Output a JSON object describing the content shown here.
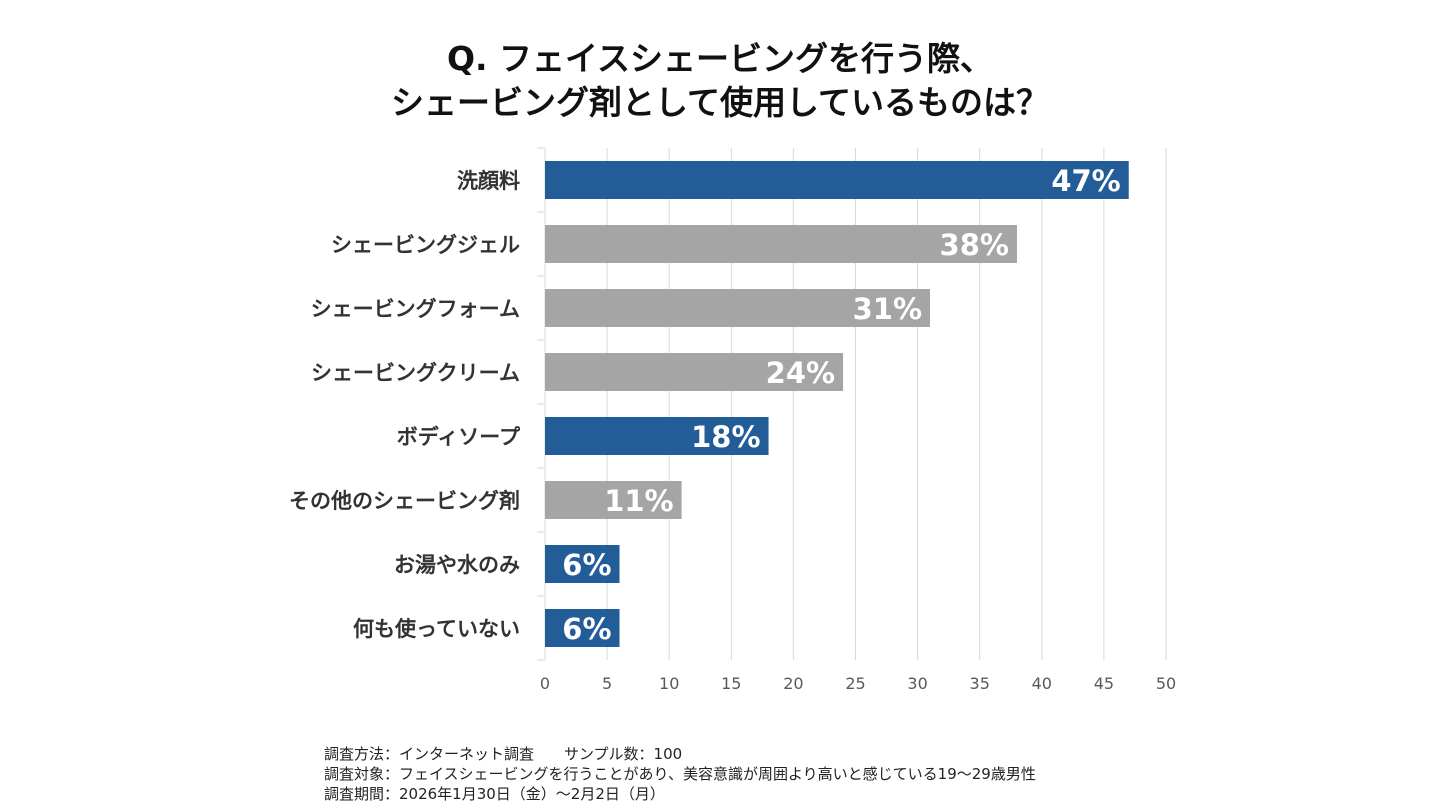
{
  "chart_data": {
    "type": "bar",
    "orientation": "horizontal",
    "title": [
      "Q. フェイスシェービングを行う際、",
      "シェービング剤として使用しているものは？"
    ],
    "categories": [
      "洗顔料",
      "シェービングジェル",
      "シェービングフォーム",
      "シェービングクリーム",
      "ボディソープ",
      "その他のシェービング剤",
      "お湯や水のみ",
      "何も使っていない"
    ],
    "values": [
      47,
      38,
      31,
      24,
      18,
      11,
      6,
      6
    ],
    "data_labels": [
      "47%",
      "38%",
      "31%",
      "24%",
      "18%",
      "11%",
      "6%",
      "6%"
    ],
    "highlighted": [
      true,
      false,
      false,
      false,
      true,
      false,
      true,
      true
    ],
    "xlim": [
      0,
      50
    ],
    "xticks": [
      0,
      5,
      10,
      15,
      20,
      25,
      30,
      35,
      40,
      45,
      50
    ],
    "xlabel": "",
    "ylabel": "",
    "grid": true,
    "colors": {
      "highlight": "#225d97",
      "default": "#a5a5a5",
      "grid": "#d9d9d9",
      "label": "#333333",
      "tick": "#595959"
    }
  },
  "footnotes": [
    "調査方法：インターネット調査　　サンプル数：100",
    "調査対象：フェイスシェービングを行うことがあり、美容意識が周囲より高いと感じている19〜29歳男性",
    "調査期間：2026年1月30日（金）〜2月2日（月）"
  ]
}
